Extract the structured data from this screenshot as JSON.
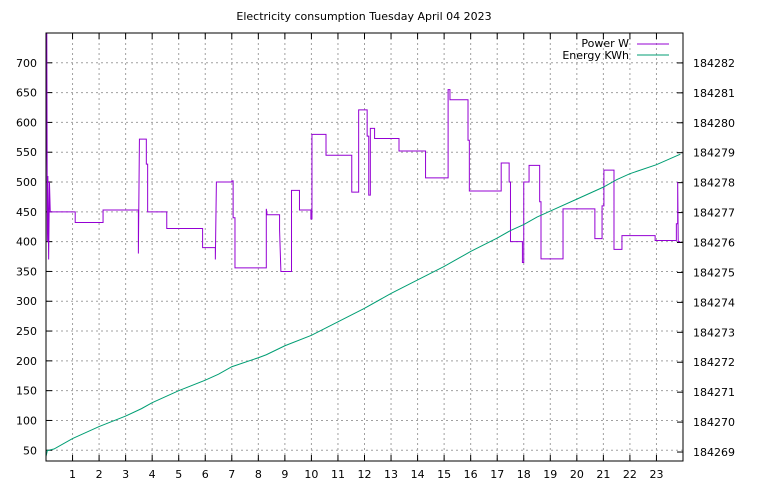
{
  "chart_data": {
    "type": "line",
    "title": "Electricity consumption Tuesday April 04 2023",
    "xlabel": "",
    "ylabel": "",
    "y2label": "",
    "xlim": [
      0,
      24
    ],
    "ylim": [
      32,
      750
    ],
    "y2lim": [
      184268.7,
      184283.0
    ],
    "x_ticks": [
      1,
      2,
      3,
      4,
      5,
      6,
      7,
      8,
      9,
      10,
      11,
      12,
      13,
      14,
      15,
      16,
      17,
      18,
      19,
      20,
      21,
      22,
      23
    ],
    "y_ticks": [
      50,
      100,
      150,
      200,
      250,
      300,
      350,
      400,
      450,
      500,
      550,
      600,
      650,
      700
    ],
    "y2_ticks": [
      184269,
      184270,
      184271,
      184272,
      184273,
      184274,
      184275,
      184276,
      184277,
      184278,
      184279,
      184280,
      184281,
      184282
    ],
    "grid": true,
    "legend_position": "top-right",
    "series": [
      {
        "name": "Power W",
        "axis": "y",
        "color": "#9400d3",
        "points": [
          [
            0.0,
            510
          ],
          [
            0.03,
            750
          ],
          [
            0.05,
            400
          ],
          [
            0.07,
            510
          ],
          [
            0.1,
            370
          ],
          [
            0.13,
            500
          ],
          [
            0.16,
            450
          ],
          [
            1.1,
            450
          ],
          [
            1.1,
            432
          ],
          [
            2.15,
            432
          ],
          [
            2.15,
            453
          ],
          [
            3.48,
            453
          ],
          [
            3.48,
            380
          ],
          [
            3.52,
            572
          ],
          [
            3.78,
            572
          ],
          [
            3.78,
            530
          ],
          [
            3.83,
            530
          ],
          [
            3.83,
            450
          ],
          [
            4.55,
            450
          ],
          [
            4.55,
            422
          ],
          [
            5.9,
            422
          ],
          [
            5.9,
            390
          ],
          [
            6.38,
            390
          ],
          [
            6.38,
            370
          ],
          [
            6.42,
            500
          ],
          [
            7.0,
            500
          ],
          [
            7.0,
            502
          ],
          [
            7.05,
            502
          ],
          [
            7.05,
            440
          ],
          [
            7.12,
            440
          ],
          [
            7.12,
            356
          ],
          [
            8.3,
            356
          ],
          [
            8.3,
            455
          ],
          [
            8.33,
            445
          ],
          [
            8.8,
            445
          ],
          [
            8.8,
            420
          ],
          [
            8.85,
            350
          ],
          [
            9.25,
            350
          ],
          [
            9.25,
            486
          ],
          [
            9.55,
            486
          ],
          [
            9.55,
            453
          ],
          [
            9.98,
            453
          ],
          [
            9.98,
            438
          ],
          [
            10.02,
            438
          ],
          [
            10.02,
            580
          ],
          [
            10.55,
            580
          ],
          [
            10.55,
            545
          ],
          [
            11.52,
            545
          ],
          [
            11.52,
            483
          ],
          [
            11.78,
            483
          ],
          [
            11.78,
            621
          ],
          [
            12.1,
            621
          ],
          [
            12.1,
            577
          ],
          [
            12.16,
            577
          ],
          [
            12.16,
            478
          ],
          [
            12.22,
            478
          ],
          [
            12.22,
            590
          ],
          [
            12.38,
            590
          ],
          [
            12.38,
            573
          ],
          [
            13.3,
            573
          ],
          [
            13.3,
            552
          ],
          [
            14.3,
            552
          ],
          [
            14.3,
            507
          ],
          [
            15.15,
            507
          ],
          [
            15.15,
            655
          ],
          [
            15.22,
            655
          ],
          [
            15.22,
            638
          ],
          [
            15.9,
            638
          ],
          [
            15.9,
            570
          ],
          [
            15.95,
            570
          ],
          [
            15.95,
            485
          ],
          [
            17.15,
            485
          ],
          [
            17.15,
            532
          ],
          [
            17.45,
            532
          ],
          [
            17.45,
            500
          ],
          [
            17.5,
            500
          ],
          [
            17.5,
            400
          ],
          [
            17.95,
            400
          ],
          [
            17.95,
            365
          ],
          [
            18.0,
            365
          ],
          [
            18.0,
            500
          ],
          [
            18.2,
            500
          ],
          [
            18.2,
            528
          ],
          [
            18.6,
            528
          ],
          [
            18.6,
            467
          ],
          [
            18.65,
            467
          ],
          [
            18.65,
            371
          ],
          [
            19.48,
            371
          ],
          [
            19.48,
            455
          ],
          [
            20.68,
            455
          ],
          [
            20.68,
            405
          ],
          [
            20.95,
            405
          ],
          [
            20.95,
            460
          ],
          [
            21.02,
            460
          ],
          [
            21.02,
            520
          ],
          [
            21.4,
            520
          ],
          [
            21.4,
            387
          ],
          [
            21.7,
            387
          ],
          [
            21.7,
            410
          ],
          [
            22.95,
            410
          ],
          [
            22.95,
            402
          ],
          [
            23.75,
            402
          ],
          [
            23.75,
            430
          ],
          [
            23.8,
            430
          ],
          [
            23.8,
            500
          ],
          [
            23.82,
            400
          ],
          [
            23.9,
            400
          ]
        ]
      },
      {
        "name": "Energy KWh",
        "axis": "y2",
        "color": "#009e73",
        "points": [
          [
            0.0,
            184268.85
          ],
          [
            0.05,
            184269.05
          ],
          [
            0.3,
            184269.1
          ],
          [
            1.0,
            184269.45
          ],
          [
            2.0,
            184269.85
          ],
          [
            3.0,
            184270.2
          ],
          [
            3.6,
            184270.45
          ],
          [
            4.0,
            184270.65
          ],
          [
            5.0,
            184271.05
          ],
          [
            6.0,
            184271.4
          ],
          [
            6.5,
            184271.6
          ],
          [
            7.0,
            184271.85
          ],
          [
            8.0,
            184272.15
          ],
          [
            8.3,
            184272.25
          ],
          [
            9.0,
            184272.55
          ],
          [
            10.0,
            184272.9
          ],
          [
            11.0,
            184273.35
          ],
          [
            12.0,
            184273.8
          ],
          [
            13.0,
            184274.3
          ],
          [
            14.0,
            184274.75
          ],
          [
            15.0,
            184275.2
          ],
          [
            15.5,
            184275.45
          ],
          [
            16.0,
            184275.7
          ],
          [
            17.0,
            184276.15
          ],
          [
            17.5,
            184276.4
          ],
          [
            18.0,
            184276.6
          ],
          [
            18.5,
            184276.85
          ],
          [
            19.0,
            184277.05
          ],
          [
            20.0,
            184277.45
          ],
          [
            21.0,
            184277.85
          ],
          [
            21.5,
            184278.1
          ],
          [
            22.0,
            184278.3
          ],
          [
            23.0,
            184278.6
          ],
          [
            23.9,
            184278.95
          ]
        ]
      }
    ]
  }
}
